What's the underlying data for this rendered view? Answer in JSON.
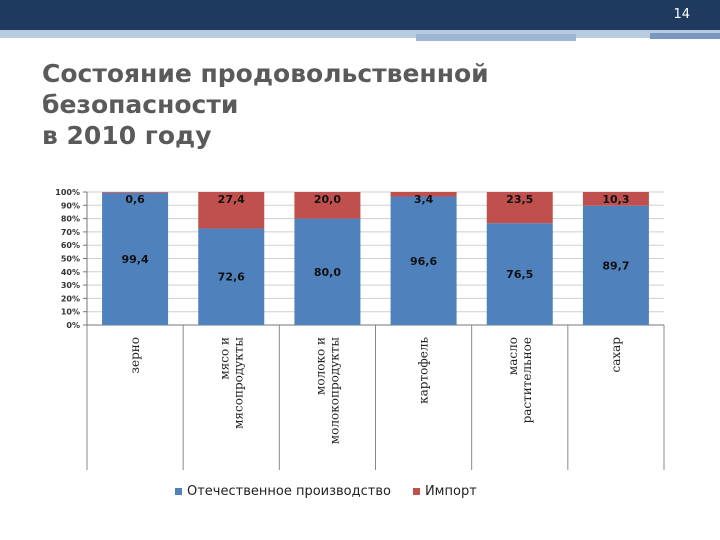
{
  "slide": {
    "number": "14",
    "title_line1": "Состояние продовольственной безопасности",
    "title_line2": "в 2010 году"
  },
  "colors": {
    "domestic": "#4f81bd",
    "import": "#c0504d"
  },
  "chart_data": {
    "type": "bar",
    "stacked": true,
    "percent": true,
    "categories": [
      "зерно",
      "мясо и мясопродукты",
      "молоко и молокопродукты",
      "картофель",
      "масло растительное",
      "сахар"
    ],
    "category_lines": [
      [
        "зерно"
      ],
      [
        "мясо и",
        "мясопродукты"
      ],
      [
        "молоко и",
        "молокопродукты"
      ],
      [
        "картофель"
      ],
      [
        "масло",
        "растительное"
      ],
      [
        "сахар"
      ]
    ],
    "series": [
      {
        "name": "Отечественное производство",
        "values": [
          99.4,
          72.6,
          80.0,
          96.6,
          76.5,
          89.7
        ],
        "labels": [
          "99,4",
          "72,6",
          "80,0",
          "96,6",
          "76,5",
          "89,7"
        ]
      },
      {
        "name": "Импорт",
        "values": [
          0.6,
          27.4,
          20.0,
          3.4,
          23.5,
          10.3
        ],
        "labels": [
          "0,6",
          "27,4",
          "20,0",
          "3,4",
          "23,5",
          "10,3"
        ]
      }
    ],
    "yticks": [
      "0%",
      "10%",
      "20%",
      "30%",
      "40%",
      "50%",
      "60%",
      "70%",
      "80%",
      "90%",
      "100%"
    ],
    "ylim": [
      0,
      100
    ],
    "legend_position": "bottom"
  }
}
